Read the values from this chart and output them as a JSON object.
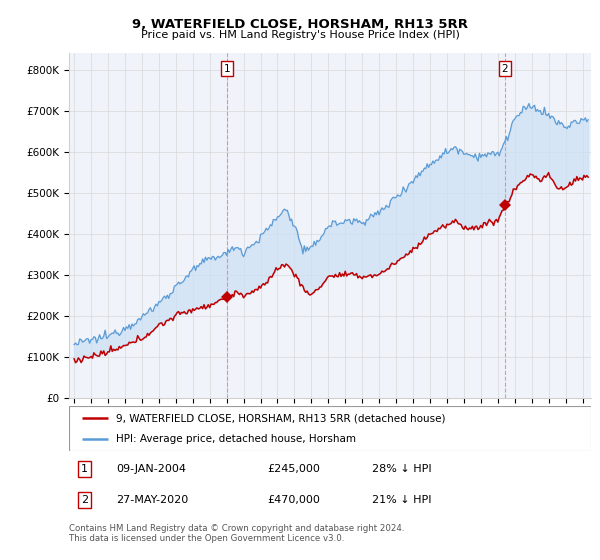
{
  "title": "9, WATERFIELD CLOSE, HORSHAM, RH13 5RR",
  "subtitle": "Price paid vs. HM Land Registry's House Price Index (HPI)",
  "ylabel_ticks": [
    "£0",
    "£100K",
    "£200K",
    "£300K",
    "£400K",
    "£500K",
    "£600K",
    "£700K",
    "£800K"
  ],
  "ytick_vals": [
    0,
    100000,
    200000,
    300000,
    400000,
    500000,
    600000,
    700000,
    800000
  ],
  "ylim": [
    0,
    840000
  ],
  "xlim_year_start": 1995,
  "xlim_year_end": 2025.5,
  "transaction1_year": 2004.03,
  "transaction1_price": 245000,
  "transaction2_year": 2020.42,
  "transaction2_price": 470000,
  "legend_line1": "9, WATERFIELD CLOSE, HORSHAM, RH13 5RR (detached house)",
  "legend_line2": "HPI: Average price, detached house, Horsham",
  "footer1": "Contains HM Land Registry data © Crown copyright and database right 2024.",
  "footer2": "This data is licensed under the Open Government Licence v3.0.",
  "hpi_color": "#5b9bd5",
  "price_color": "#c00000",
  "fill_color": "#ddeeff",
  "marker_color": "#c00000",
  "bg_color": "#ffffff",
  "grid_color": "#d0d0d0",
  "annotation_box_color": "#c00000",
  "hpi_anchors_x": [
    1995.0,
    1996.0,
    1997.0,
    1998.0,
    1999.0,
    2000.0,
    2001.0,
    2002.0,
    2003.0,
    2004.0,
    2004.5,
    2005.0,
    2006.0,
    2007.0,
    2007.5,
    2008.0,
    2008.5,
    2009.0,
    2009.5,
    2010.0,
    2011.0,
    2012.0,
    2013.0,
    2014.0,
    2015.0,
    2016.0,
    2017.0,
    2017.5,
    2018.0,
    2018.5,
    2019.0,
    2019.5,
    2020.0,
    2020.5,
    2021.0,
    2021.5,
    2022.0,
    2022.5,
    2023.0,
    2023.5,
    2024.0,
    2024.5,
    2025.4
  ],
  "hpi_anchors_y": [
    130000,
    140000,
    150000,
    170000,
    195000,
    230000,
    270000,
    310000,
    340000,
    350000,
    370000,
    355000,
    390000,
    440000,
    460000,
    420000,
    360000,
    360000,
    390000,
    420000,
    430000,
    430000,
    450000,
    490000,
    530000,
    570000,
    600000,
    610000,
    600000,
    590000,
    590000,
    595000,
    590000,
    630000,
    680000,
    700000,
    710000,
    700000,
    690000,
    670000,
    660000,
    670000,
    680000
  ],
  "price_anchors_x": [
    1995.0,
    1996.0,
    1997.0,
    1998.0,
    1999.0,
    2000.0,
    2001.0,
    2002.0,
    2003.0,
    2004.03,
    2004.5,
    2005.0,
    2006.0,
    2007.0,
    2007.5,
    2008.0,
    2008.5,
    2009.0,
    2009.5,
    2010.0,
    2011.0,
    2012.0,
    2013.0,
    2014.0,
    2015.0,
    2016.0,
    2017.0,
    2017.5,
    2018.0,
    2018.5,
    2019.0,
    2019.5,
    2020.0,
    2020.42,
    2020.8,
    2021.0,
    2021.5,
    2022.0,
    2022.5,
    2023.0,
    2023.5,
    2024.0,
    2024.5,
    2025.4
  ],
  "price_anchors_y": [
    90000,
    100000,
    110000,
    125000,
    145000,
    175000,
    200000,
    215000,
    225000,
    245000,
    255000,
    250000,
    265000,
    315000,
    325000,
    305000,
    265000,
    250000,
    270000,
    295000,
    300000,
    295000,
    300000,
    330000,
    360000,
    400000,
    420000,
    430000,
    415000,
    415000,
    415000,
    430000,
    430000,
    470000,
    490000,
    510000,
    530000,
    545000,
    530000,
    545000,
    510000,
    510000,
    530000,
    540000
  ]
}
